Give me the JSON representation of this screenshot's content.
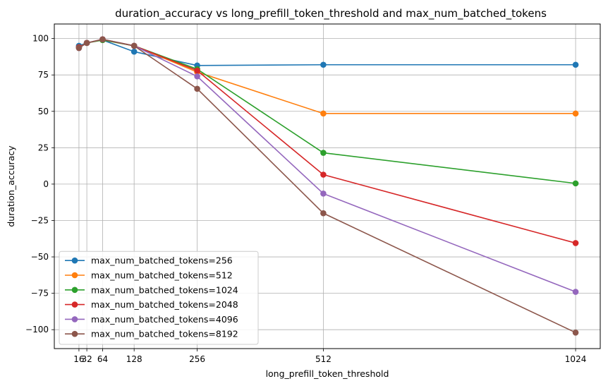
{
  "chart_data": {
    "type": "line",
    "title": "duration_accuracy vs long_prefill_token_threshold and max_num_batched_tokens",
    "xlabel": "long_prefill_token_threshold",
    "ylabel": "duration_accuracy",
    "x": [
      16,
      32,
      64,
      128,
      256,
      512,
      1024
    ],
    "xticks": [
      "16",
      "32",
      "64",
      "128",
      "256",
      "512",
      "1024"
    ],
    "yticks": [
      "100",
      "75",
      "50",
      "25",
      "0",
      "−25",
      "−50",
      "−75",
      "−100"
    ],
    "ylim": [
      -113,
      110
    ],
    "xlim": [
      -34,
      1074
    ],
    "grid": true,
    "legend_position": "lower-left",
    "series": [
      {
        "name": "max_num_batched_tokens=256",
        "color": "#1f77b4",
        "values": [
          95,
          97,
          99,
          91,
          81.5,
          82,
          82
        ]
      },
      {
        "name": "max_num_batched_tokens=512",
        "color": "#ff7f0e",
        "values": [
          94,
          97,
          99,
          95,
          77,
          48.5,
          48.5
        ]
      },
      {
        "name": "max_num_batched_tokens=1024",
        "color": "#2ca02c",
        "values": [
          94,
          97,
          99,
          95,
          79,
          21.5,
          0.5
        ]
      },
      {
        "name": "max_num_batched_tokens=2048",
        "color": "#d62728",
        "values": [
          94,
          97,
          99.5,
          95,
          78,
          6.5,
          -40.5
        ]
      },
      {
        "name": "max_num_batched_tokens=4096",
        "color": "#9467bd",
        "values": [
          93.5,
          97,
          99.5,
          95,
          74,
          -6.5,
          -74
        ]
      },
      {
        "name": "max_num_batched_tokens=8192",
        "color": "#8c564b",
        "values": [
          93.5,
          97,
          99.5,
          95,
          65.5,
          -20,
          -102
        ]
      }
    ]
  }
}
